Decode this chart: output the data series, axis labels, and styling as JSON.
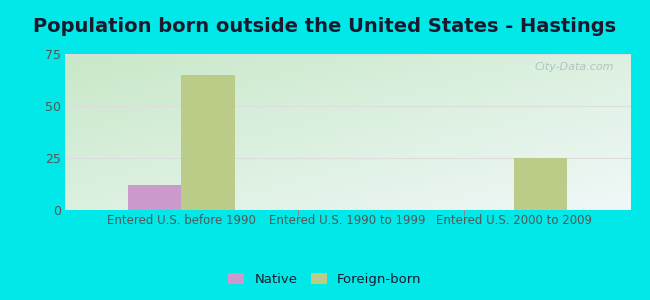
{
  "title": "Population born outside the United States - Hastings",
  "categories": [
    "Entered U.S. before 1990",
    "Entered U.S. 1990 to 1999",
    "Entered U.S. 2000 to 2009"
  ],
  "native_values": [
    12,
    0,
    0
  ],
  "foreign_values": [
    65,
    0,
    25
  ],
  "native_color": "#cc99cc",
  "foreign_color": "#bbcc88",
  "ylim": [
    0,
    75
  ],
  "yticks": [
    0,
    25,
    50,
    75
  ],
  "bg_color": "#00e8e8",
  "plot_bg_topleft": "#c8e8c8",
  "plot_bg_bottomright": "#e8f8f8",
  "grid_color": "#dddddd",
  "bar_width": 0.32,
  "title_fontsize": 14,
  "title_color": "#1a1a2e",
  "tick_color": "#555555",
  "legend_native": "Native",
  "legend_foreign": "Foreign-born",
  "watermark": "City-Data.com",
  "watermark_color": "#aabbbb"
}
